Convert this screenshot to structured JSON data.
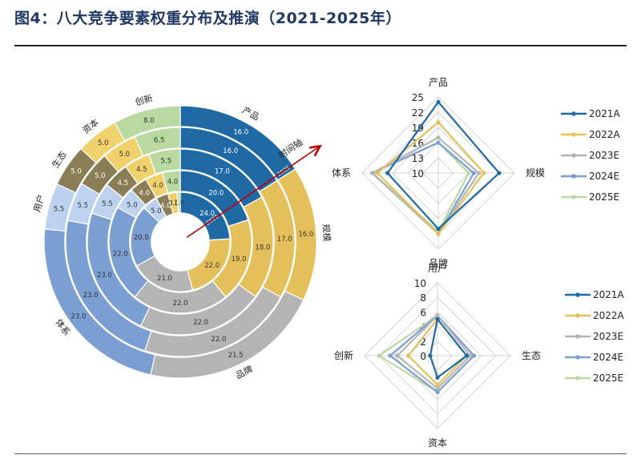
{
  "title": "图4：八大竞争要素权重分布及推演（2021-2025年）",
  "chart_data": [
    {
      "type": "donut",
      "rings": [
        "2021A",
        "2022A",
        "2023E",
        "2024E",
        "2025E"
      ],
      "categories": [
        "产品",
        "规模",
        "品牌",
        "体系",
        "用户",
        "生态",
        "资本",
        "创新"
      ],
      "ring_values": [
        [
          24.0,
          22.0,
          21.0,
          20.0,
          5.0,
          4.0,
          3.0,
          1.0
        ],
        [
          20.0,
          19.0,
          22.0,
          22.0,
          5.0,
          4.0,
          4.0,
          4.0
        ],
        [
          17.0,
          18.0,
          22.0,
          23.0,
          5.5,
          4.5,
          4.5,
          5.5
        ],
        [
          16.0,
          17.0,
          22.0,
          23.0,
          5.5,
          5.0,
          5.0,
          6.5
        ],
        [
          16.0,
          16.0,
          21.5,
          23.0,
          5.5,
          5.0,
          5.0,
          8.0
        ]
      ],
      "colors": [
        "#1f6aa5",
        "#e5c05a",
        "#b4b4b4",
        "#7b9fd3",
        "#bcd2ee",
        "#8b7d55",
        "#f0d16b",
        "#b8d9a0"
      ],
      "arrow_label": "时间轴",
      "ring_tick_labels": [
        "2021",
        "2025"
      ]
    },
    {
      "type": "radar",
      "axes": [
        "产品",
        "规模",
        "品牌",
        "体系"
      ],
      "ticks": [
        10,
        13,
        16,
        19,
        22,
        25
      ],
      "range": [
        10,
        25
      ],
      "legend_position": "right",
      "series": [
        {
          "name": "2021A",
          "values": [
            24.0,
            22.0,
            21.0,
            20.0
          ],
          "color": "#1f6aa5"
        },
        {
          "name": "2022A",
          "values": [
            20.0,
            19.0,
            22.0,
            22.0
          ],
          "color": "#e5c05a"
        },
        {
          "name": "2023E",
          "values": [
            17.0,
            18.0,
            22.0,
            23.0
          ],
          "color": "#b4b4b4"
        },
        {
          "name": "2024E",
          "values": [
            16.0,
            17.0,
            22.0,
            23.0
          ],
          "color": "#7b9fd3"
        },
        {
          "name": "2025E",
          "values": [
            16.0,
            16.0,
            21.5,
            23.0
          ],
          "color": "#b8d9a0"
        }
      ]
    },
    {
      "type": "radar",
      "axes": [
        "用户",
        "生态",
        "资本",
        "创新"
      ],
      "ticks": [
        0,
        2,
        4,
        6,
        8,
        10
      ],
      "range": [
        0,
        10
      ],
      "legend_position": "right",
      "series": [
        {
          "name": "2021A",
          "values": [
            5.0,
            4.0,
            3.0,
            1.0
          ],
          "color": "#1f6aa5"
        },
        {
          "name": "2022A",
          "values": [
            5.0,
            4.0,
            4.0,
            4.0
          ],
          "color": "#e5c05a"
        },
        {
          "name": "2023E",
          "values": [
            5.5,
            4.5,
            4.5,
            5.5
          ],
          "color": "#b4b4b4"
        },
        {
          "name": "2024E",
          "values": [
            5.5,
            5.0,
            5.0,
            6.5
          ],
          "color": "#7b9fd3"
        },
        {
          "name": "2025E",
          "values": [
            5.5,
            5.0,
            5.0,
            8.0
          ],
          "color": "#b8d9a0"
        }
      ]
    }
  ]
}
